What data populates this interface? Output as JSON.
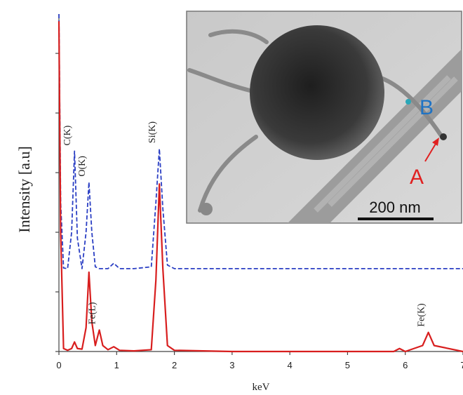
{
  "chart_data": {
    "type": "line",
    "xlabel": "keV",
    "ylabel": "Intensity [a.u]",
    "xlim": [
      0,
      7
    ],
    "xticks": [
      0,
      1,
      2,
      3,
      4,
      5,
      6,
      7
    ],
    "ylim": [
      0,
      5.66
    ],
    "yticks": [
      0,
      1,
      2,
      3,
      4,
      5
    ],
    "x": [
      0,
      0.03,
      0.08,
      0.15,
      0.22,
      0.27,
      0.32,
      0.4,
      0.47,
      0.52,
      0.57,
      0.63,
      0.7,
      0.76,
      0.85,
      0.95,
      1.05,
      1.3,
      1.6,
      1.68,
      1.74,
      1.8,
      1.88,
      2.0,
      3,
      4,
      5,
      5.8,
      5.9,
      6.0,
      6.3,
      6.4,
      6.5,
      7
    ],
    "series": [
      {
        "color": "#2b3fc4",
        "dashed": true,
        "values": [
          5.66,
          2.5,
          1.4,
          1.39,
          2.0,
          3.36,
          1.9,
          1.39,
          2.0,
          2.84,
          2.0,
          1.42,
          1.39,
          1.39,
          1.39,
          1.48,
          1.39,
          1.39,
          1.42,
          2.5,
          3.4,
          2.4,
          1.45,
          1.39,
          1.39,
          1.39,
          1.39,
          1.39,
          1.39,
          1.39,
          1.39,
          1.39,
          1.39,
          1.39
        ]
      },
      {
        "color": "#d81e1e",
        "dashed": false,
        "values": [
          5.54,
          2.0,
          0.05,
          0.02,
          0.05,
          0.16,
          0.05,
          0.04,
          0.4,
          1.33,
          0.5,
          0.1,
          0.36,
          0.1,
          0.03,
          0.08,
          0.02,
          0.01,
          0.03,
          1.2,
          2.81,
          1.4,
          0.1,
          0.02,
          0,
          0,
          0,
          0,
          0.05,
          0,
          0.1,
          0.32,
          0.1,
          0
        ]
      }
    ],
    "annotations": [
      {
        "text": "C(K)",
        "x": 0.27,
        "y": 3.36
      },
      {
        "text": "O(K)",
        "x": 0.52,
        "y": 2.84
      },
      {
        "text": "Si(K)",
        "x": 1.74,
        "y": 3.4
      },
      {
        "text": "Fe(L)",
        "x": 0.7,
        "y": 0.36
      },
      {
        "text": "Fe(K)",
        "x": 6.4,
        "y": 0.32
      }
    ],
    "inset_labels": [
      "A",
      "B",
      "200 nm"
    ]
  }
}
